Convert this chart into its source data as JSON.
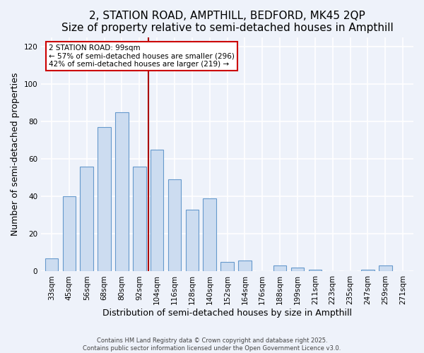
{
  "title": "2, STATION ROAD, AMPTHILL, BEDFORD, MK45 2QP",
  "subtitle": "Size of property relative to semi-detached houses in Ampthill",
  "xlabel": "Distribution of semi-detached houses by size in Ampthill",
  "ylabel": "Number of semi-detached properties",
  "bar_labels": [
    "33sqm",
    "45sqm",
    "56sqm",
    "68sqm",
    "80sqm",
    "92sqm",
    "104sqm",
    "116sqm",
    "128sqm",
    "140sqm",
    "152sqm",
    "164sqm",
    "176sqm",
    "188sqm",
    "199sqm",
    "211sqm",
    "223sqm",
    "235sqm",
    "247sqm",
    "259sqm",
    "271sqm"
  ],
  "bar_values": [
    7,
    40,
    56,
    77,
    85,
    56,
    65,
    49,
    33,
    39,
    5,
    6,
    0,
    3,
    2,
    1,
    0,
    0,
    1,
    3,
    0
  ],
  "bar_color": "#ccdcf0",
  "bar_edge_color": "#6699cc",
  "vline_x": 6.0,
  "vline_color": "#aa0000",
  "annotation_text": "2 STATION ROAD: 99sqm\n← 57% of semi-detached houses are smaller (296)\n42% of semi-detached houses are larger (219) →",
  "annotation_box_color": "#ffffff",
  "annotation_box_edge": "#cc0000",
  "ylim": [
    0,
    125
  ],
  "yticks": [
    0,
    20,
    40,
    60,
    80,
    100,
    120
  ],
  "footer1": "Contains HM Land Registry data © Crown copyright and database right 2025.",
  "footer2": "Contains public sector information licensed under the Open Government Licence v3.0.",
  "bg_color": "#eef2fa",
  "title_fontsize": 11,
  "subtitle_fontsize": 9.5,
  "tick_fontsize": 7.5,
  "label_fontsize": 9,
  "bar_width": 0.75
}
